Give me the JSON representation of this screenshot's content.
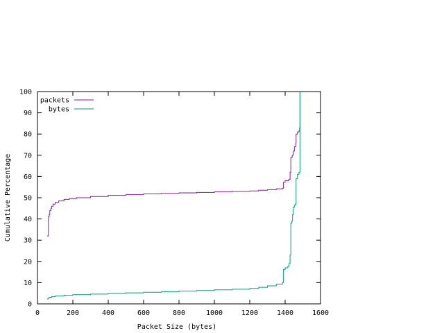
{
  "chart_data": {
    "type": "line",
    "xlabel": "Packet Size (bytes)",
    "ylabel": "Cumulative Percentage",
    "xlim": [
      0,
      1600
    ],
    "ylim": [
      0,
      100
    ],
    "xticks": [
      0,
      200,
      400,
      600,
      800,
      1000,
      1200,
      1400,
      1600
    ],
    "yticks": [
      0,
      10,
      20,
      30,
      40,
      50,
      60,
      70,
      80,
      90,
      100
    ],
    "grid": false,
    "legend_position": "top-left",
    "series": [
      {
        "name": "packets",
        "color": "#8b1a9b",
        "step": true,
        "points": [
          [
            54,
            32
          ],
          [
            60,
            32
          ],
          [
            62,
            41
          ],
          [
            66,
            42
          ],
          [
            70,
            44
          ],
          [
            76,
            45
          ],
          [
            80,
            46
          ],
          [
            88,
            47
          ],
          [
            100,
            47.8
          ],
          [
            120,
            48.5
          ],
          [
            150,
            49.2
          ],
          [
            180,
            49.6
          ],
          [
            220,
            50
          ],
          [
            300,
            50.6
          ],
          [
            400,
            51.1
          ],
          [
            500,
            51.5
          ],
          [
            600,
            51.8
          ],
          [
            700,
            52
          ],
          [
            800,
            52.3
          ],
          [
            900,
            52.5
          ],
          [
            1000,
            52.8
          ],
          [
            1100,
            53
          ],
          [
            1200,
            53.2
          ],
          [
            1250,
            53.5
          ],
          [
            1300,
            53.8
          ],
          [
            1350,
            54.2
          ],
          [
            1385,
            54.5
          ],
          [
            1390,
            57.3
          ],
          [
            1400,
            58
          ],
          [
            1420,
            58.6
          ],
          [
            1428,
            62
          ],
          [
            1432,
            69
          ],
          [
            1440,
            70
          ],
          [
            1446,
            72
          ],
          [
            1452,
            74
          ],
          [
            1460,
            75.5
          ],
          [
            1462,
            80
          ],
          [
            1470,
            81
          ],
          [
            1478,
            81.5
          ],
          [
            1482,
            83
          ],
          [
            1484,
            100
          ]
        ]
      },
      {
        "name": "bytes",
        "color": "#009e73",
        "step": true,
        "points": [
          [
            54,
            2.3
          ],
          [
            60,
            2.8
          ],
          [
            70,
            3.1
          ],
          [
            80,
            3.4
          ],
          [
            100,
            3.7
          ],
          [
            150,
            4.1
          ],
          [
            200,
            4.3
          ],
          [
            300,
            4.6
          ],
          [
            400,
            4.9
          ],
          [
            500,
            5.2
          ],
          [
            600,
            5.5
          ],
          [
            700,
            5.7
          ],
          [
            800,
            6
          ],
          [
            900,
            6.3
          ],
          [
            1000,
            6.6
          ],
          [
            1100,
            6.9
          ],
          [
            1200,
            7.3
          ],
          [
            1250,
            7.8
          ],
          [
            1300,
            8.5
          ],
          [
            1350,
            9.3
          ],
          [
            1385,
            10
          ],
          [
            1390,
            16.2
          ],
          [
            1400,
            17
          ],
          [
            1415,
            17.6
          ],
          [
            1422,
            19
          ],
          [
            1428,
            23
          ],
          [
            1432,
            38
          ],
          [
            1438,
            39
          ],
          [
            1442,
            42
          ],
          [
            1446,
            45.5
          ],
          [
            1452,
            46.5
          ],
          [
            1458,
            47
          ],
          [
            1462,
            59
          ],
          [
            1470,
            61
          ],
          [
            1478,
            62
          ],
          [
            1484,
            62.3
          ],
          [
            1484,
            100
          ]
        ]
      }
    ]
  }
}
